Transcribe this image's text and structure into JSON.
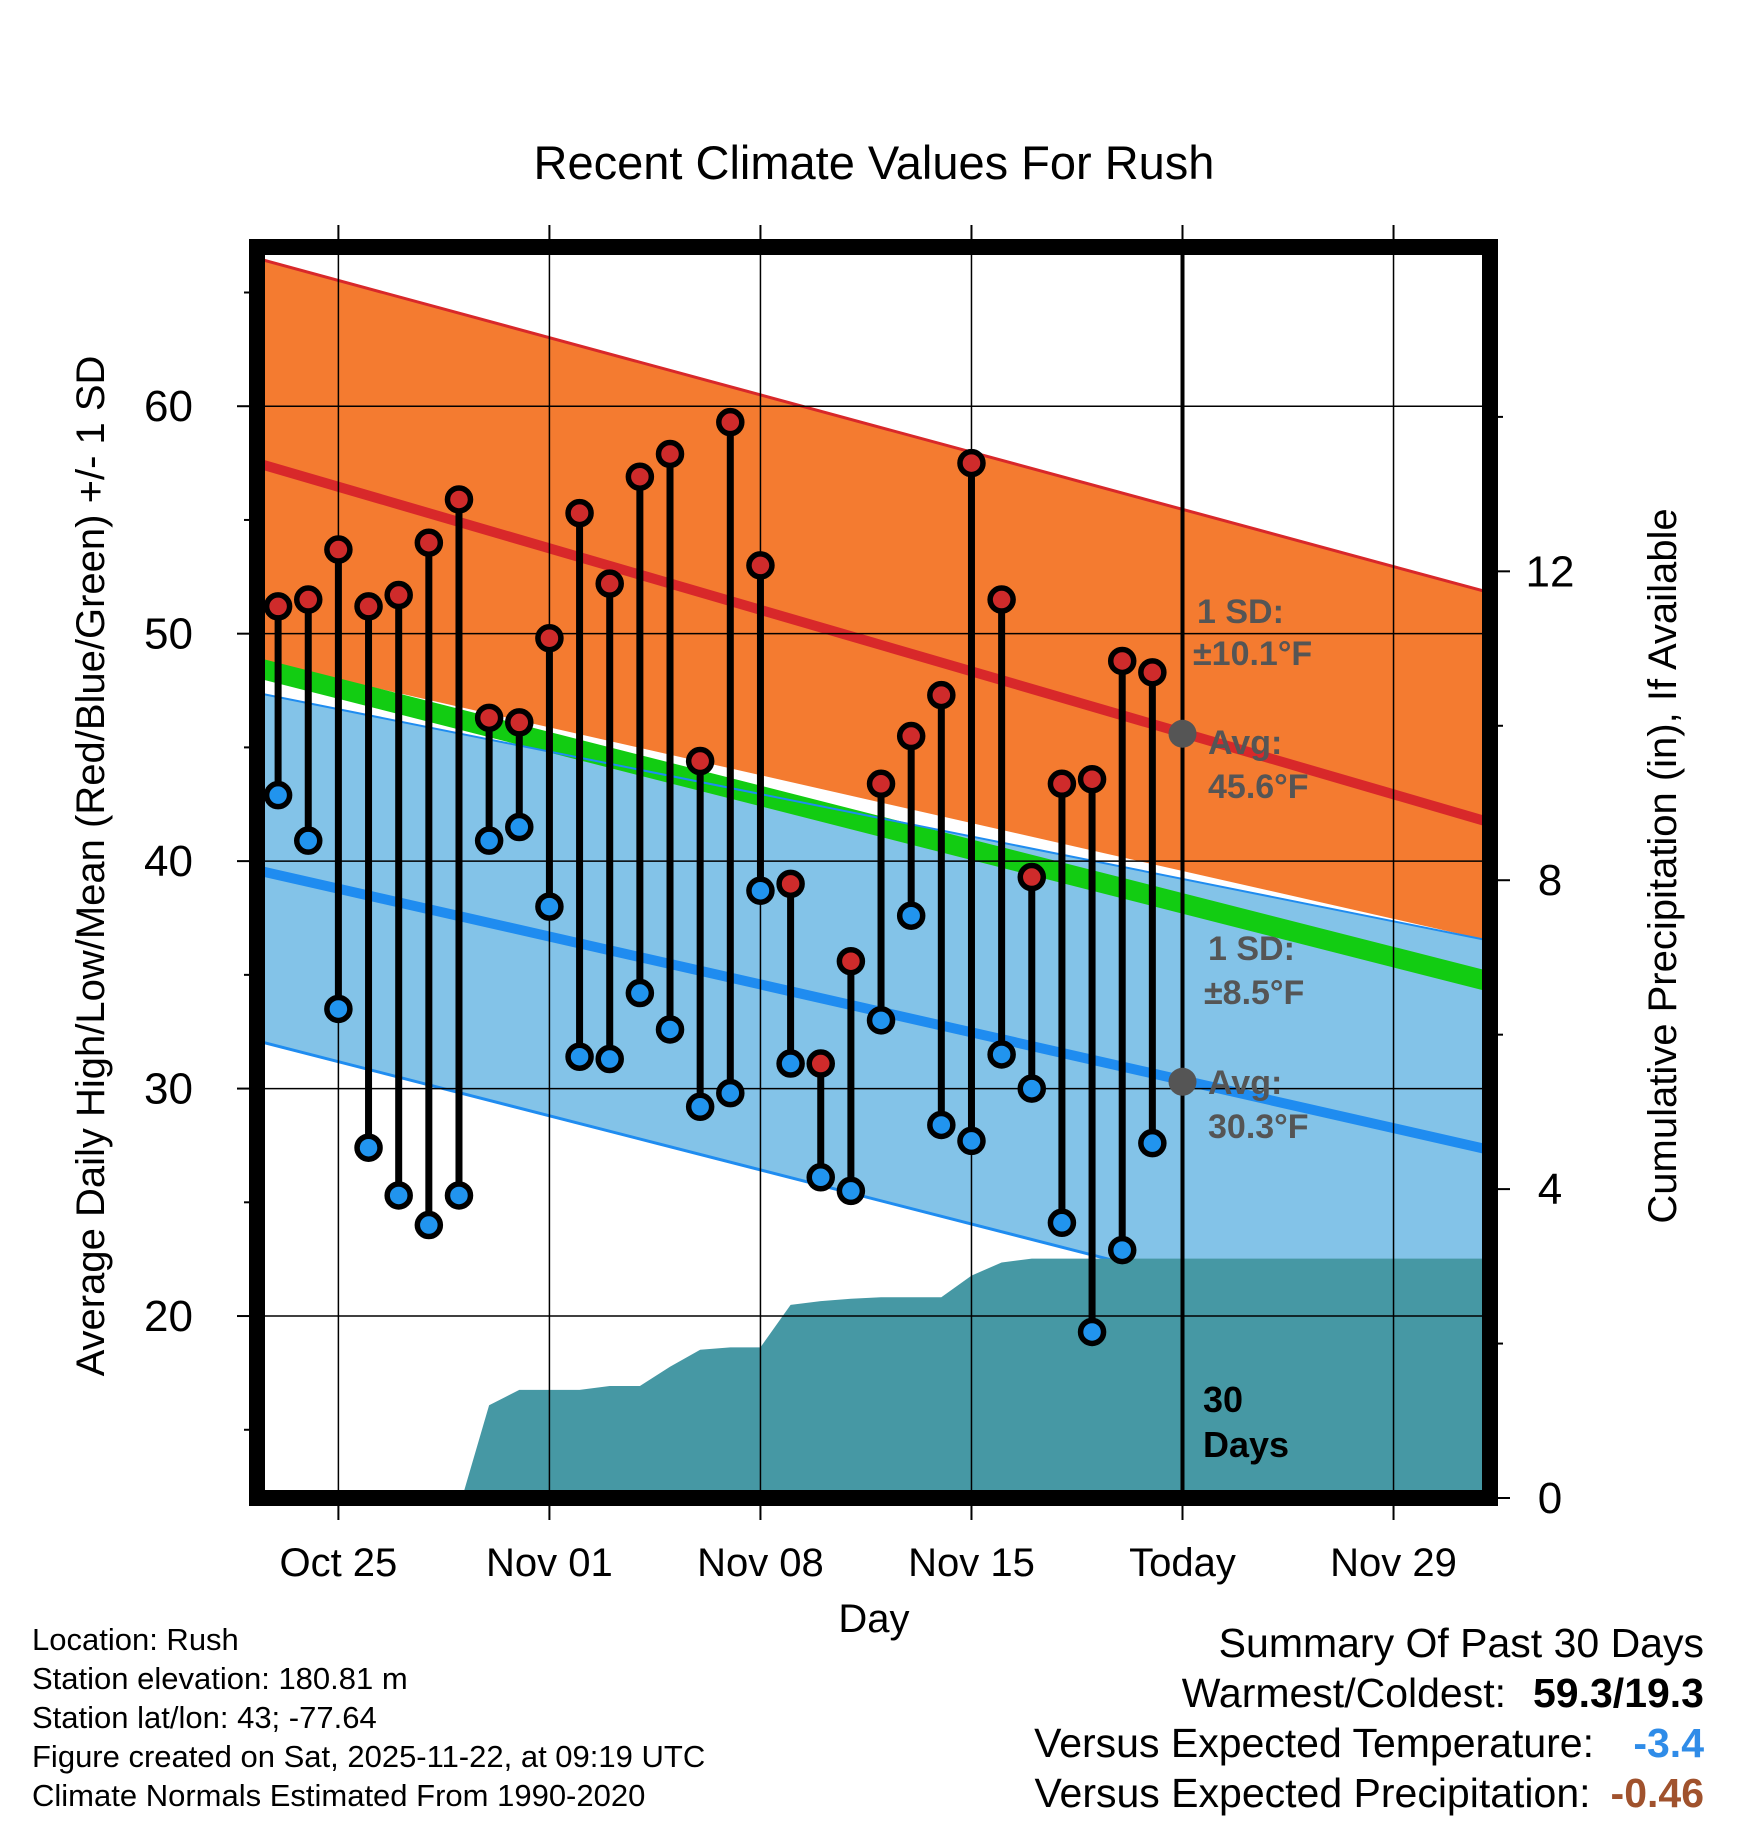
{
  "chart_data": {
    "type": "line",
    "title": "Recent Climate Values For Rush",
    "xlabel": "Day",
    "ylabel": "Average Daily High/Low/Mean (Red/Blue/Green) +/- 1 SD",
    "y2label": "Cumulative Precipitation (in), If Available",
    "x_tick_labels": [
      "Oct 25",
      "Nov 01",
      "Nov 08",
      "Nov 15",
      "Today",
      "Nov 29"
    ],
    "x_tick_days": [
      3,
      10,
      17,
      24,
      31,
      38
    ],
    "x_range": [
      0.3,
      41.2
    ],
    "ylim": [
      12,
      67
    ],
    "y_ticks": [
      20,
      30,
      40,
      50,
      60
    ],
    "y2lim": [
      0,
      16.2
    ],
    "y2_ticks": [
      0,
      4,
      8,
      12
    ],
    "today_day": 31,
    "days_label_number": "30",
    "days_label_word": "Days",
    "normal_high": {
      "start": 57.5,
      "end": 41.7
    },
    "normal_high_sd_band": {
      "upper_start": 66.5,
      "upper_end": 51.8,
      "lower_start": 48.8,
      "lower_end": 36.5
    },
    "normal_low": {
      "start": 39.6,
      "end": 27.3
    },
    "normal_low_sd_band": {
      "upper_start": 47.4,
      "upper_end": 36.5,
      "lower_start": 32.1,
      "lower_end": 18.2
    },
    "normal_mean": {
      "start": 48.5,
      "end": 34.7
    },
    "annotations": {
      "high_sd": {
        "line1": "1 SD:",
        "line2": "±10.1°F"
      },
      "high_avg": {
        "line1": "Avg:",
        "line2": "45.6°F",
        "value": 45.6
      },
      "low_sd": {
        "line1": "1 SD:",
        "line2": "±8.5°F"
      },
      "low_avg": {
        "line1": "Avg:",
        "line2": "30.3°F",
        "value": 30.3
      }
    },
    "series": [
      {
        "name": "Daily High",
        "days": [
          1,
          2,
          3,
          4,
          5,
          6,
          7,
          8,
          9,
          10,
          11,
          12,
          13,
          14,
          15,
          16,
          17,
          18,
          19,
          20,
          21,
          22,
          23,
          24,
          25,
          26,
          27,
          28,
          29,
          30
        ],
        "values": [
          51.2,
          51.5,
          53.7,
          51.2,
          51.7,
          54.0,
          55.9,
          46.3,
          46.1,
          49.8,
          55.3,
          52.2,
          56.9,
          57.9,
          44.4,
          59.3,
          53.0,
          39.0,
          31.1,
          35.6,
          43.4,
          45.5,
          47.3,
          57.5,
          51.5,
          39.3,
          43.4,
          43.6,
          48.8,
          48.3
        ]
      },
      {
        "name": "Daily Low",
        "days": [
          1,
          2,
          3,
          4,
          5,
          6,
          7,
          8,
          9,
          10,
          11,
          12,
          13,
          14,
          15,
          16,
          17,
          18,
          19,
          20,
          21,
          22,
          23,
          24,
          25,
          26,
          27,
          28,
          29,
          30
        ],
        "values": [
          42.9,
          40.9,
          33.5,
          27.4,
          25.3,
          24.0,
          25.3,
          40.9,
          41.5,
          38.0,
          31.4,
          31.3,
          34.2,
          32.6,
          29.2,
          29.8,
          38.7,
          31.1,
          26.1,
          25.5,
          33.0,
          37.6,
          28.4,
          27.7,
          31.5,
          30.0,
          24.1,
          19.3,
          22.9,
          27.6
        ]
      },
      {
        "name": "Cumulative Precipitation",
        "days": [
          7.1,
          8.0,
          9.0,
          11.0,
          12.0,
          13.0,
          14.0,
          15.0,
          16.0,
          17.0,
          18.0,
          19.0,
          20.0,
          21.0,
          22.0,
          23.0,
          24.0,
          25.0,
          26.0,
          27.0,
          28.0,
          29.0,
          30.0,
          31.0,
          32.0,
          33.0,
          34.0,
          35.0,
          36.0,
          37.0,
          38.0,
          39.0,
          40.0,
          41.2
        ],
        "values": [
          0,
          1.2,
          1.4,
          1.4,
          1.45,
          1.45,
          1.7,
          1.92,
          1.95,
          1.95,
          2.5,
          2.55,
          2.58,
          2.6,
          2.6,
          2.6,
          2.88,
          3.05,
          3.1,
          3.1,
          3.1,
          3.1,
          3.1,
          3.1,
          3.1,
          3.1,
          3.1,
          3.1,
          3.1,
          3.1,
          3.1,
          3.1,
          3.1,
          3.1
        ]
      }
    ]
  },
  "footer": {
    "location": "Location: Rush",
    "elevation": "Station elevation: 180.81 m",
    "latlon": "Station lat/lon: 43; -77.64",
    "created": "Figure created on Sat, 2025-11-22, at 09:19 UTC",
    "normals": "Climate Normals Estimated From 1990-2020"
  },
  "summary": {
    "title": "Summary Of Past 30 Days",
    "warmest_label": "Warmest/Coldest:",
    "warmest_value": "59.3/19.3",
    "temp_label": "Versus Expected Temperature:",
    "temp_value": "-3.4",
    "precip_label": "Versus Expected Precipitation:",
    "precip_value": "-0.46"
  },
  "colors": {
    "high_band": "#f47b30",
    "high_line": "#d8282a",
    "low_band": "#83c3e8",
    "low_line": "#1f8cf0",
    "mean_band": "#12cc12",
    "overlap_band": "#961212",
    "precip_fill": "#4698a4",
    "annotation": "#555555",
    "high_marker": "#cf2b2b",
    "low_marker": "#2194ee",
    "temp_value": "#2f8ce8",
    "precip_value": "#a0522d"
  }
}
